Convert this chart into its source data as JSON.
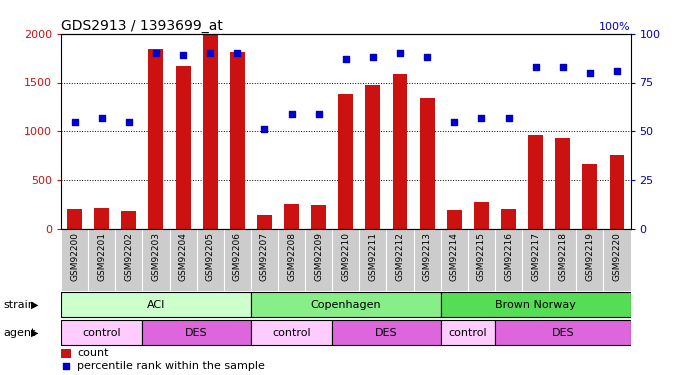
{
  "title": "GDS2913 / 1393699_at",
  "samples": [
    "GSM92200",
    "GSM92201",
    "GSM92202",
    "GSM92203",
    "GSM92204",
    "GSM92205",
    "GSM92206",
    "GSM92207",
    "GSM92208",
    "GSM92209",
    "GSM92210",
    "GSM92211",
    "GSM92212",
    "GSM92213",
    "GSM92214",
    "GSM92215",
    "GSM92216",
    "GSM92217",
    "GSM92218",
    "GSM92219",
    "GSM92220"
  ],
  "counts": [
    200,
    210,
    185,
    1840,
    1670,
    2000,
    1810,
    140,
    250,
    245,
    1380,
    1470,
    1590,
    1340,
    190,
    270,
    200,
    960,
    930,
    660,
    760
  ],
  "percentiles": [
    55,
    57,
    55,
    90,
    89,
    90,
    90,
    51,
    59,
    59,
    87,
    88,
    90,
    88,
    55,
    57,
    57,
    83,
    83,
    80,
    81
  ],
  "bar_color": "#cc1111",
  "dot_color": "#0000cc",
  "ylim_left": [
    0,
    2000
  ],
  "ylim_right": [
    0,
    100
  ],
  "yticks_left": [
    0,
    500,
    1000,
    1500,
    2000
  ],
  "yticks_right": [
    0,
    25,
    50,
    75,
    100
  ],
  "strain_groups": [
    {
      "label": "ACI",
      "start": 0,
      "end": 7,
      "color": "#ccffcc"
    },
    {
      "label": "Copenhagen",
      "start": 7,
      "end": 14,
      "color": "#88ee88"
    },
    {
      "label": "Brown Norway",
      "start": 14,
      "end": 21,
      "color": "#55dd55"
    }
  ],
  "agent_groups": [
    {
      "label": "control",
      "start": 0,
      "end": 3,
      "color": "#ffccff"
    },
    {
      "label": "DES",
      "start": 3,
      "end": 7,
      "color": "#dd66dd"
    },
    {
      "label": "control",
      "start": 7,
      "end": 10,
      "color": "#ffccff"
    },
    {
      "label": "DES",
      "start": 10,
      "end": 14,
      "color": "#dd66dd"
    },
    {
      "label": "control",
      "start": 14,
      "end": 16,
      "color": "#ffccff"
    },
    {
      "label": "DES",
      "start": 16,
      "end": 21,
      "color": "#dd66dd"
    }
  ],
  "bar_width": 0.55,
  "xtick_bg_color": "#cccccc",
  "legend_count_color": "#cc1111",
  "legend_dot_color": "#0000cc",
  "strain_label": "strain",
  "agent_label": "agent",
  "background_color": "#ffffff",
  "title_fontsize": 10,
  "tick_label_fontsize": 6.5,
  "annotation_fontsize": 8,
  "right_axis_label": "100%"
}
